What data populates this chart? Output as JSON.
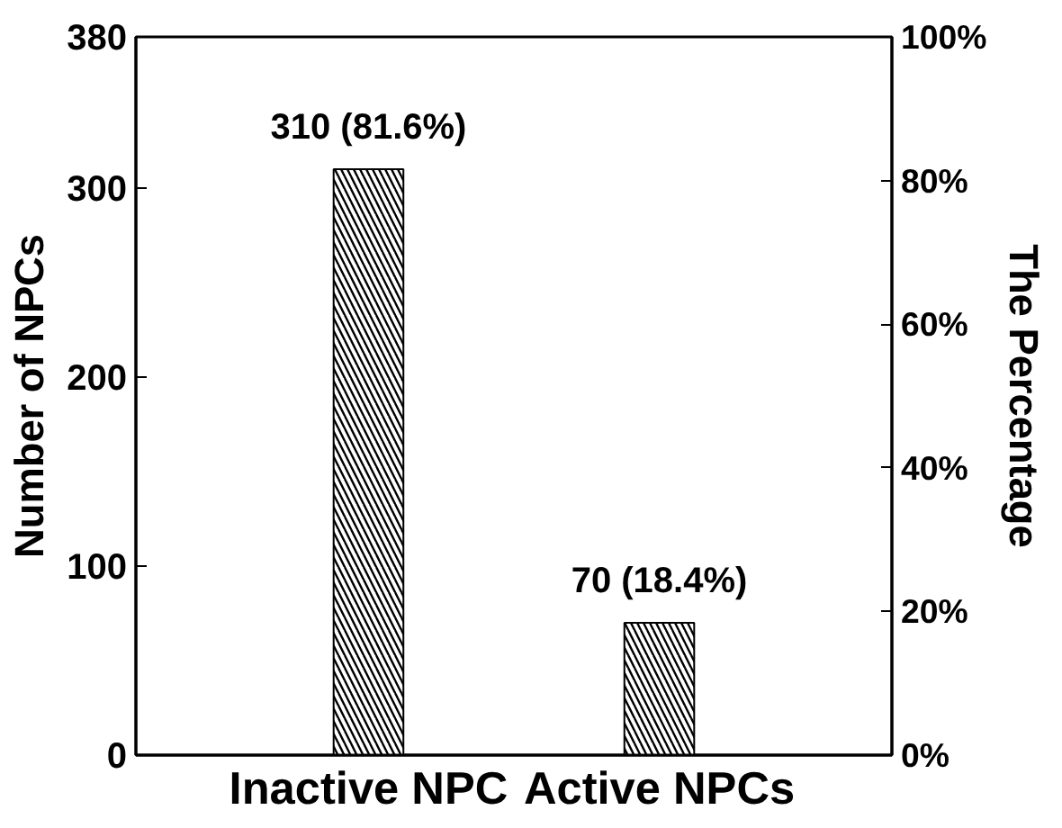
{
  "chart_data": {
    "type": "bar",
    "categories": [
      "Inactive NPC",
      "Active NPCs"
    ],
    "values": [
      310,
      70
    ],
    "color": "#000000",
    "value_labels": [
      "310 (81.6%)",
      "70 (18.4%)"
    ],
    "ylabel": "Number of NPCs",
    "y2label": "The Percentage",
    "ylim": [
      0,
      380
    ],
    "yticks": [
      0,
      100,
      200,
      300,
      380
    ],
    "y2lim": [
      0,
      100
    ],
    "y2ticks": [
      {
        "value": 0,
        "label": "0%"
      },
      {
        "value": 20,
        "label": "20%"
      },
      {
        "value": 40,
        "label": "40%"
      },
      {
        "value": 60,
        "label": "60%"
      },
      {
        "value": 80,
        "label": "80%"
      },
      {
        "value": 100,
        "label": "100%"
      }
    ],
    "grid": false
  }
}
